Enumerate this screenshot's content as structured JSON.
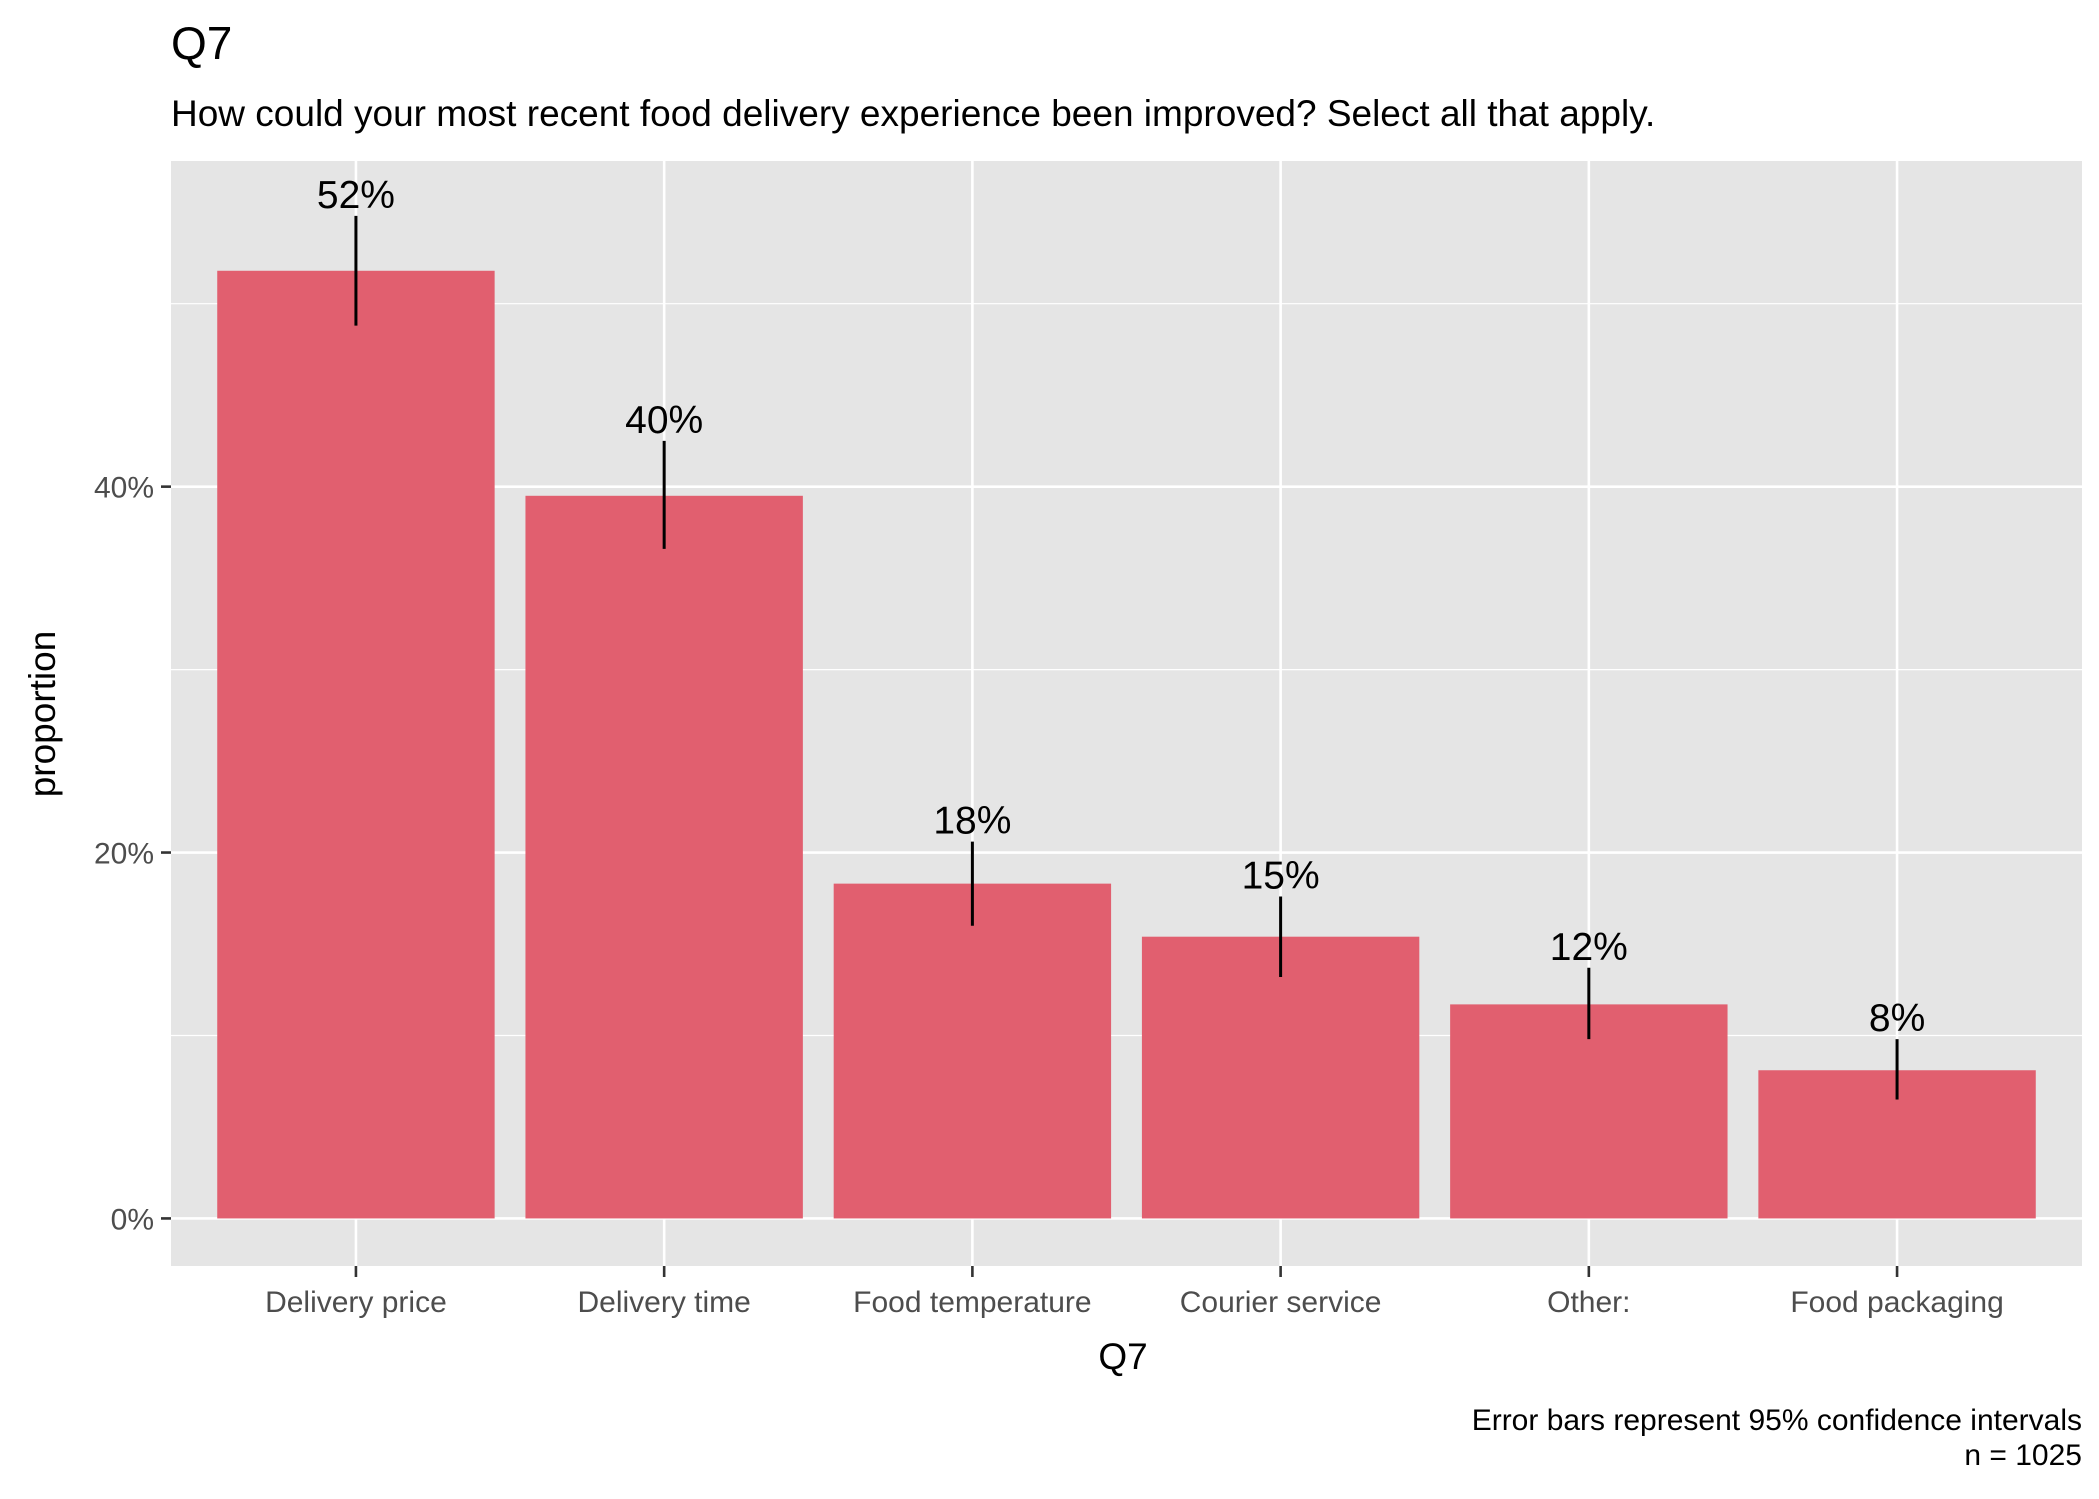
{
  "chart_data": {
    "type": "bar",
    "title": "Q7",
    "subtitle": "How could your most recent food delivery experience been improved? Select all that apply.",
    "xlabel": "Q7",
    "ylabel": "proportion",
    "categories": [
      "Delivery price",
      "Delivery time",
      "Food temperature",
      "Courier service",
      "Other:",
      "Food packaging"
    ],
    "values": [
      0.518,
      0.395,
      0.183,
      0.154,
      0.117,
      0.081
    ],
    "value_labels": [
      "52%",
      "40%",
      "18%",
      "15%",
      "12%",
      "8%"
    ],
    "error_bars": {
      "lower": [
        0.488,
        0.366,
        0.16,
        0.132,
        0.098,
        0.065
      ],
      "upper": [
        0.548,
        0.425,
        0.206,
        0.176,
        0.137,
        0.098
      ]
    },
    "ylim": [
      -0.026,
      0.578
    ],
    "yticks": [
      0,
      0.2,
      0.4
    ],
    "ytick_labels": [
      "0%",
      "20%",
      "40%"
    ],
    "grid": true,
    "legend": "none",
    "bar_color": "#e15f6f",
    "panel_background": "#e5e5e5",
    "grid_color": "#ffffff",
    "caption_lines": [
      "Error bars represent 95% confidence intervals",
      "n = 1025"
    ]
  }
}
